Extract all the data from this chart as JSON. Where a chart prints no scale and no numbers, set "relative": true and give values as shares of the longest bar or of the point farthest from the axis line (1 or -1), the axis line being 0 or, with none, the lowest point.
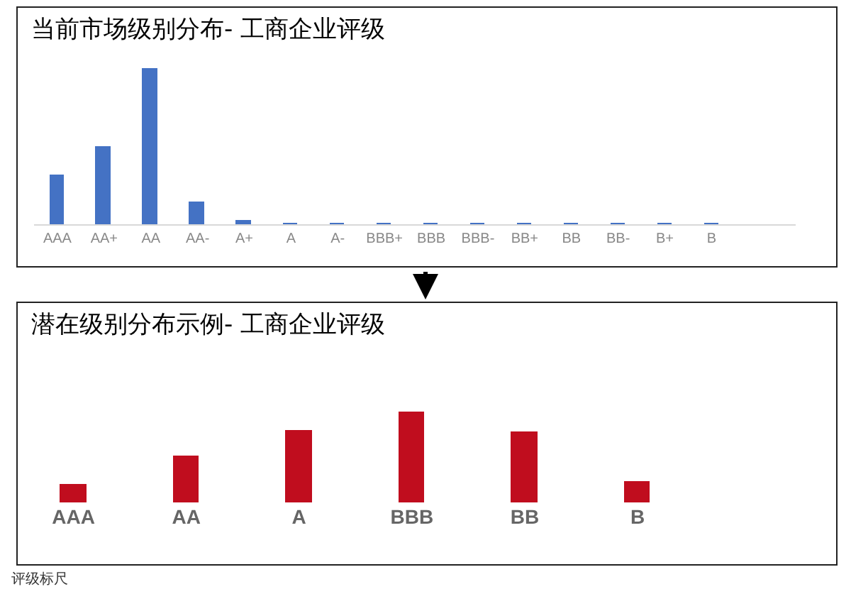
{
  "chart_data": [
    {
      "type": "bar",
      "title": "当前市场级别分布- 工商企业评级",
      "relative": true,
      "color": "#4472c4",
      "categories": [
        "AAA",
        "AA+",
        "AA",
        "AA-",
        "A+",
        "A",
        "A-",
        "BBB+",
        "BBB",
        "BBB-",
        "BB+",
        "BB",
        "BB-",
        "B+",
        "B"
      ],
      "values": [
        0.31,
        0.49,
        1,
        0.14,
        0.02,
        0,
        0,
        0,
        0,
        0,
        0,
        0,
        0,
        0,
        0
      ]
    },
    {
      "type": "bar",
      "title": "潜在级别分布示例- 工商企业评级",
      "relative": true,
      "color": "#c00d1e",
      "categories": [
        "AAA",
        "AA",
        "A",
        "BBB",
        "BB",
        "B"
      ],
      "values": [
        0.18,
        0.5,
        0.78,
        1,
        0.77,
        0.22
      ],
      "annotations": [
        "评级标尺"
      ]
    }
  ]
}
